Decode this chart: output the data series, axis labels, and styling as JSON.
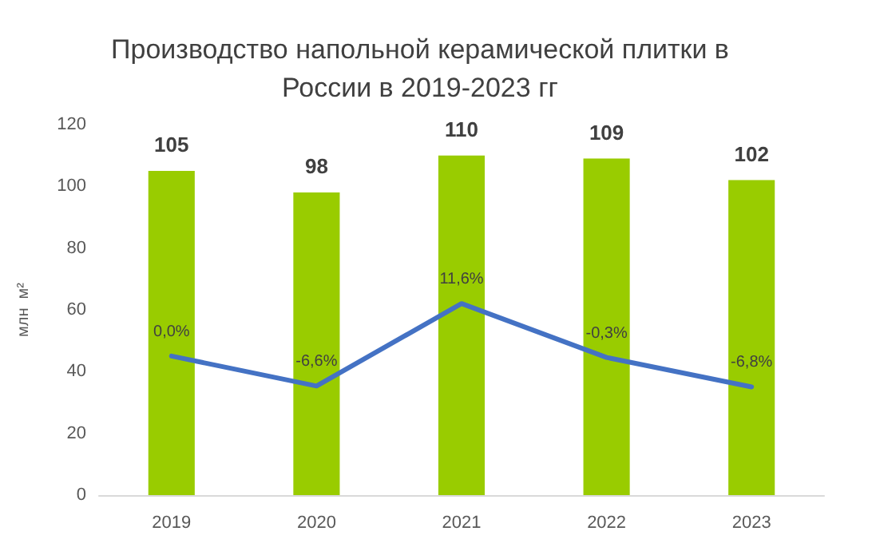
{
  "chart_data": {
    "type": "bar",
    "title": "Производство напольной керамической плитки в\nРоссии в 2019-2023 гг",
    "ylabel": "млн  м²",
    "categories": [
      "2019",
      "2020",
      "2021",
      "2022",
      "2023"
    ],
    "series": [
      {
        "color": "#99cc00",
        "values": [
          105,
          98,
          110,
          109,
          102
        ],
        "value_labels": [
          "105",
          "98",
          "110",
          "109",
          "102"
        ]
      },
      {
        "type": "line",
        "axis": "y2",
        "color": "#4472c4",
        "values": [
          0.0,
          -6.6,
          11.6,
          -0.3,
          -6.8
        ],
        "value_labels": [
          "0,0%",
          "-6,6%",
          "11,6%",
          "-0,3%",
          "-6,8%"
        ]
      }
    ],
    "ylim": [
      0,
      120
    ],
    "yticks": [
      0,
      20,
      40,
      60,
      80,
      100,
      120
    ],
    "tick_labels": "y",
    "grid": false,
    "marker": "none"
  }
}
